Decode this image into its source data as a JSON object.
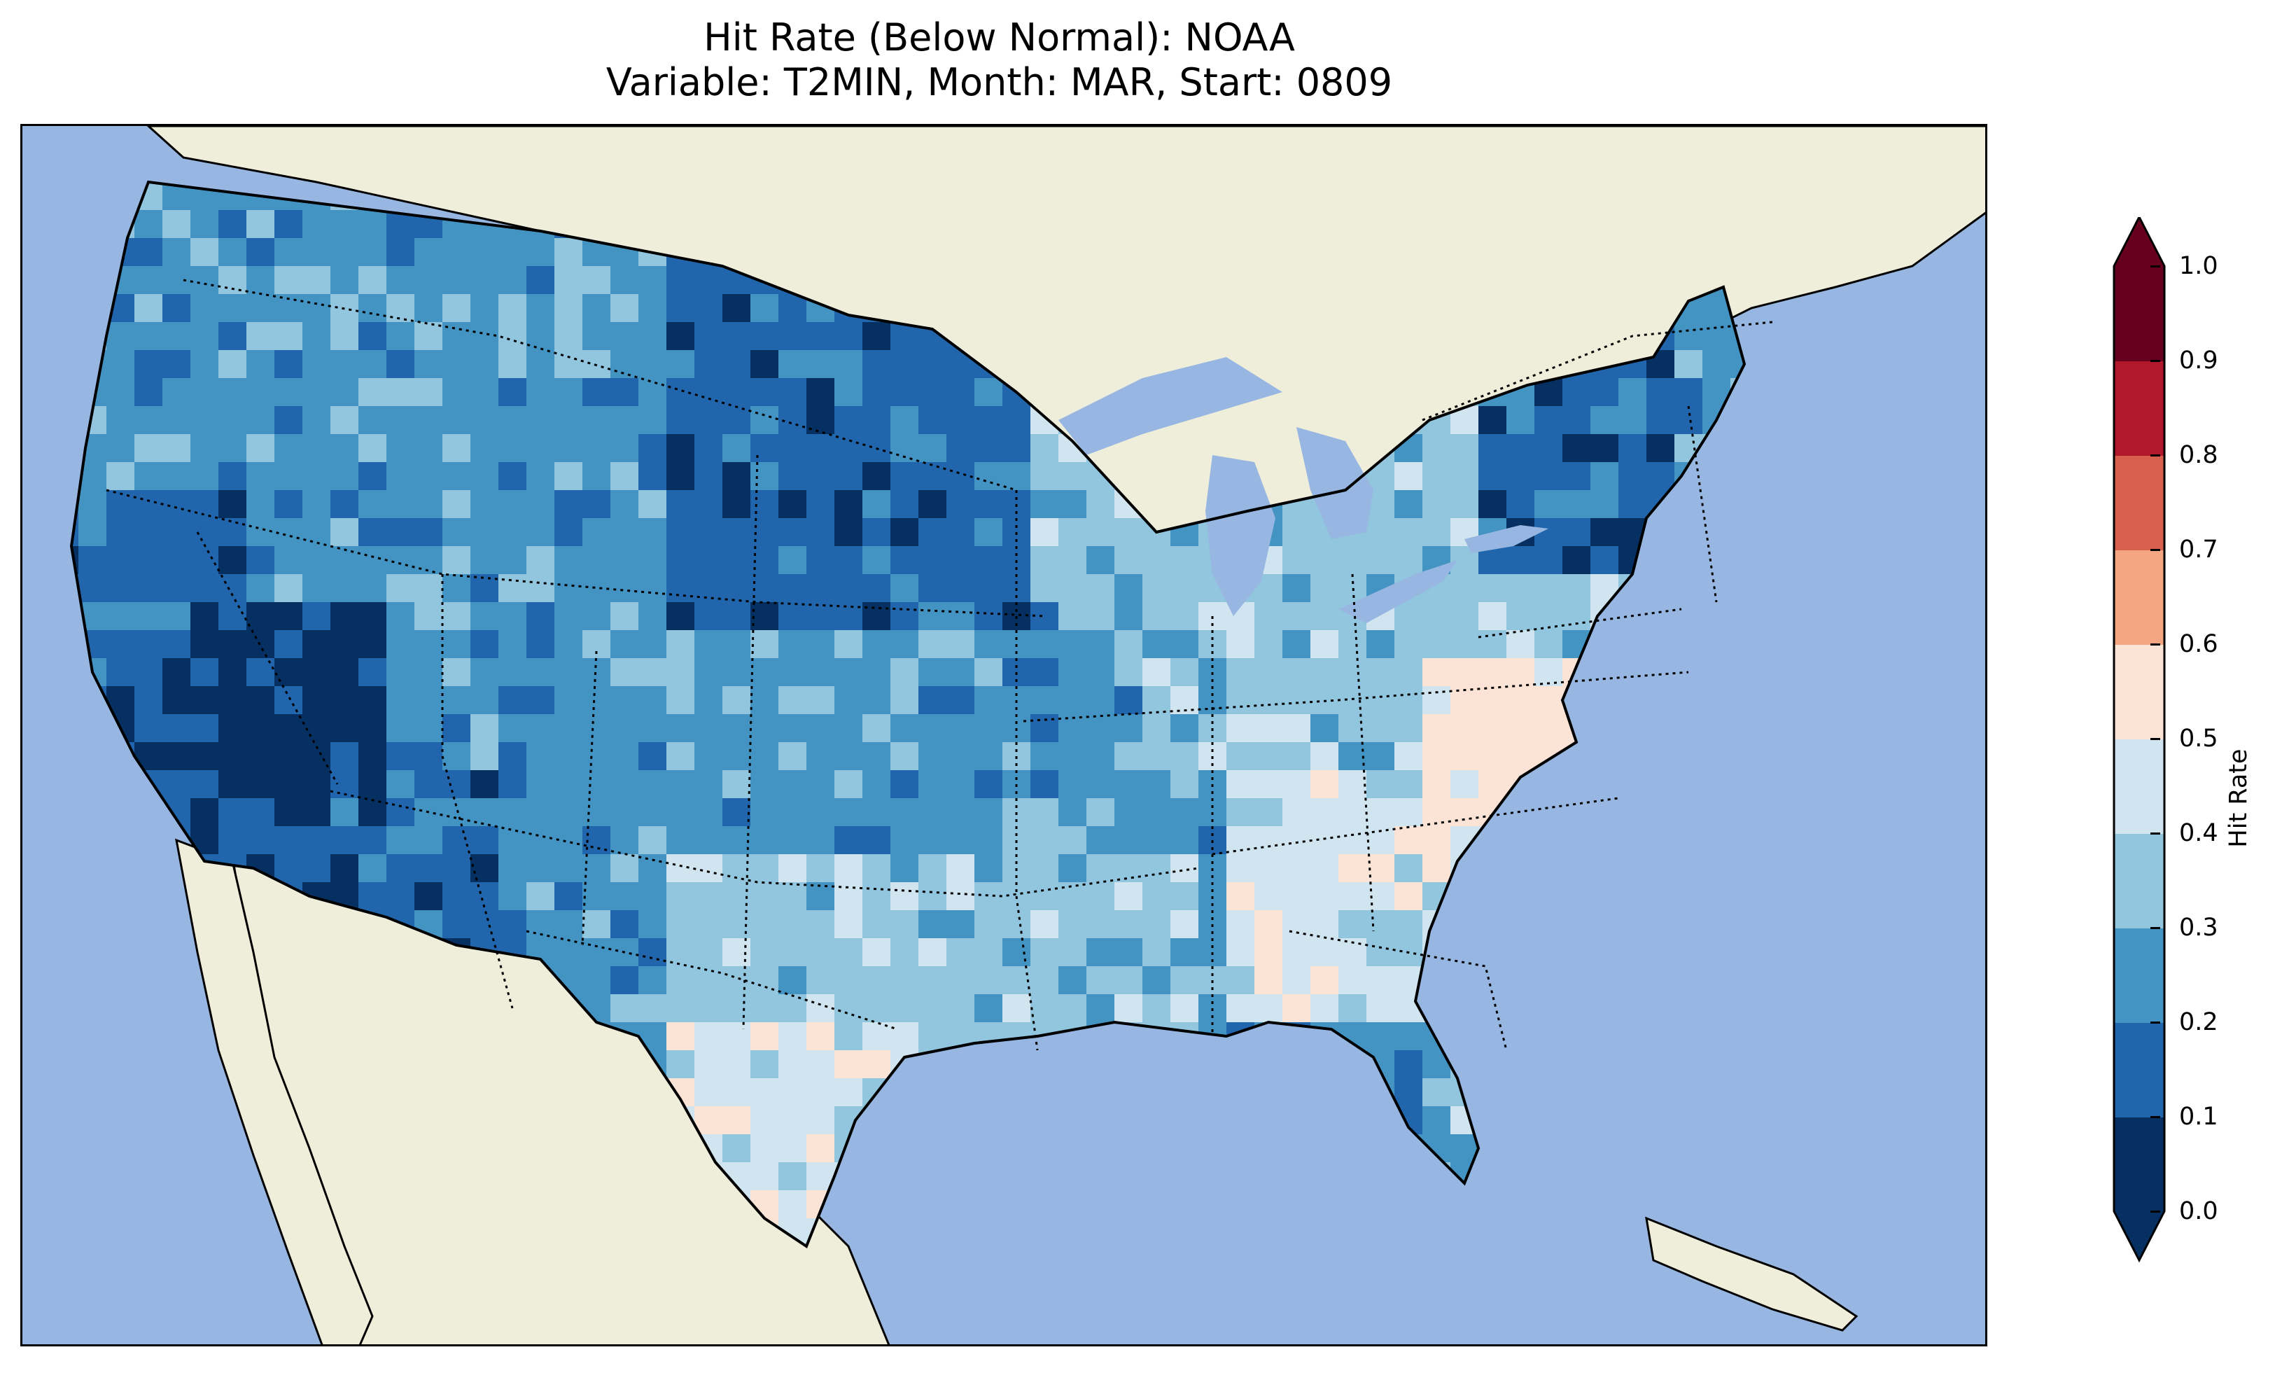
{
  "title": {
    "line1": "Hit Rate (Below Normal): NOAA",
    "line2": "Variable: T2MIN, Month: MAR, Start: 0809"
  },
  "colors": {
    "ocean": "#97b6e1",
    "land": "#efeedb",
    "border": "#000000"
  },
  "colorbar": {
    "label": "Hit Rate",
    "extend": "both",
    "ticks": [
      "0.0",
      "0.1",
      "0.2",
      "0.3",
      "0.4",
      "0.5",
      "0.6",
      "0.7",
      "0.8",
      "0.9",
      "1.0"
    ],
    "bin_colors": [
      "#053061",
      "#2166ac",
      "#4393c3",
      "#92c5de",
      "#d1e5f0",
      "#fbe3d6",
      "#f4a582",
      "#d6604d",
      "#b2182b",
      "#67001f"
    ],
    "under_color": "#053061",
    "over_color": "#67001f"
  },
  "map": {
    "region": "Contiguous United States",
    "base_value": 0.25,
    "regions": [
      {
        "name": "pacific-northwest",
        "value": 0.25
      },
      {
        "name": "idaho-montana",
        "value": 0.25
      },
      {
        "name": "nevada-basin",
        "value": 0.05
      },
      {
        "name": "california",
        "value": 0.15
      },
      {
        "name": "arizona",
        "value": 0.15
      },
      {
        "name": "new-mexico-west",
        "value": 0.25
      },
      {
        "name": "northern-plains",
        "value": 0.15
      },
      {
        "name": "central-plains",
        "value": 0.25
      },
      {
        "name": "texas",
        "value": 0.35
      },
      {
        "name": "south-texas",
        "value": 0.45
      },
      {
        "name": "upper-midwest",
        "value": 0.35
      },
      {
        "name": "ohio-valley",
        "value": 0.35
      },
      {
        "name": "southeast",
        "value": 0.45
      },
      {
        "name": "florida",
        "value": 0.35
      },
      {
        "name": "virginia-carolina",
        "value": 0.55
      },
      {
        "name": "new-york",
        "value": 0.15
      },
      {
        "name": "new-england",
        "value": 0.25
      }
    ]
  }
}
